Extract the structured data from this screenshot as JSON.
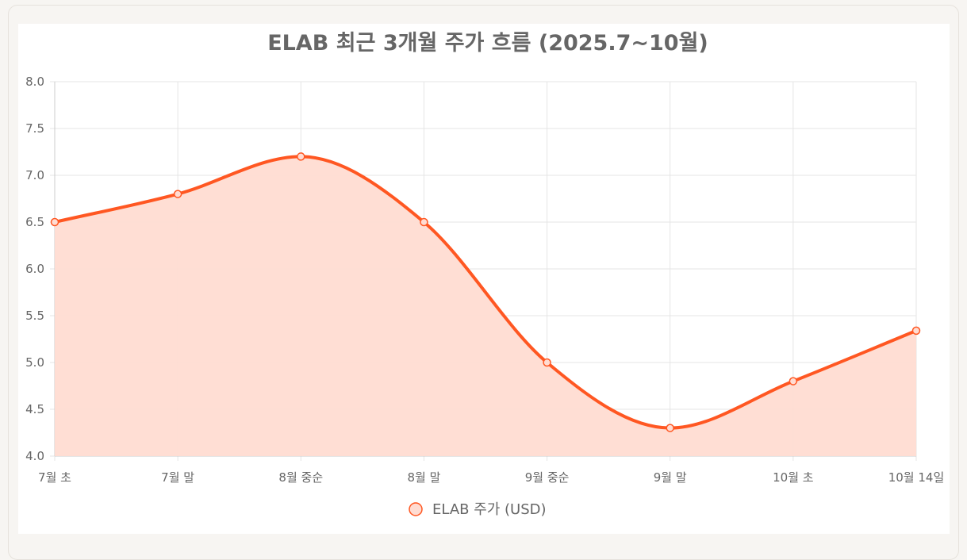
{
  "chart_data": {
    "type": "area",
    "title": "ELAB 최근 3개월 주가 흐름 (2025.7~10월)",
    "categories": [
      "7월 초",
      "7월 말",
      "8월 중순",
      "8월 말",
      "9월 중순",
      "9월 말",
      "10월 초",
      "10월 14일"
    ],
    "series": [
      {
        "name": "ELAB 주가 (USD)",
        "values": [
          6.5,
          6.8,
          7.2,
          6.5,
          5.0,
          4.3,
          4.8,
          5.34
        ]
      }
    ],
    "ylim": [
      4.0,
      8.0
    ],
    "yticks": [
      "4.0",
      "4.5",
      "5.0",
      "5.5",
      "6.0",
      "6.5",
      "7.0",
      "7.5",
      "8.0"
    ],
    "grid": true,
    "legend_position": "bottom",
    "colors": {
      "line": "#ff5722",
      "fill": "#ffdcd2",
      "grid": "#e5e5e5",
      "axis": "#cccccc"
    }
  }
}
